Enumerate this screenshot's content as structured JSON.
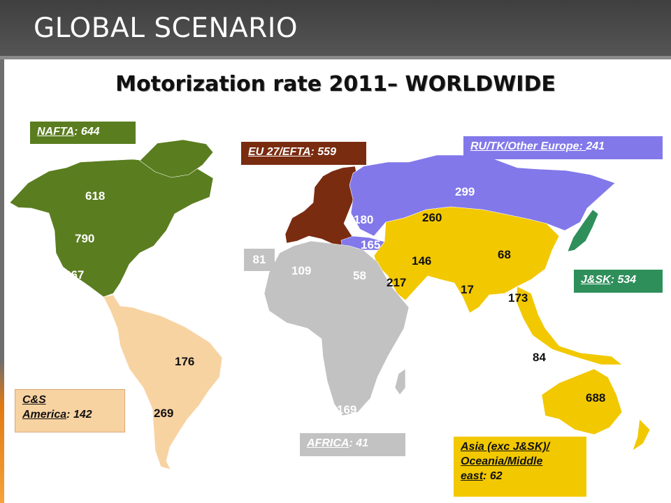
{
  "header": {
    "title": "GLOBAL SCENARIO"
  },
  "map": {
    "title": "Motorization rate 2011– WORLDWIDE",
    "colors": {
      "nafta": "#5a7d1f",
      "cs_america": "#f8d3a2",
      "eu": "#7a2c10",
      "russia": "#8278ea",
      "jsk": "#2f8f5b",
      "asia": "#f2c800",
      "africa": "#c2c2c2"
    },
    "regions": {
      "nafta": {
        "name": "NAFTA",
        "sep": ": ",
        "value": "644"
      },
      "eu": {
        "name": "EU 27/EFTA",
        "sep": ": ",
        "value": "559"
      },
      "russia": {
        "name": "RU/TK/Other Europe: ",
        "value": "241"
      },
      "jsk": {
        "name": "J&SK",
        "sep": ": ",
        "value": "534"
      },
      "cs": {
        "name_line1": "C&S",
        "name_line2": "America",
        "sep": ": ",
        "value": "142"
      },
      "africa": {
        "name": "AFRICA",
        "sep": ": ",
        "value": "41"
      },
      "asia": {
        "name_line1": "Asia (exc J&SK)/",
        "name_line2": "Oceania/Middle",
        "name_line3": "east",
        "sep": ": ",
        "value": "62"
      }
    },
    "numbers": {
      "canada": "618",
      "usa": "790",
      "mexico": "267",
      "brazil": "176",
      "argentina": "269",
      "europe_east": "180",
      "turkey": "165",
      "russia": "299",
      "central_asia": "260",
      "nw_africa": "81",
      "north_africa": "109",
      "egypt": "58",
      "south_africa": "169",
      "middle_east": "217",
      "iran": "146",
      "india": "17",
      "china": "68",
      "se_asia": "173",
      "indonesia": "84",
      "australia": "688"
    }
  }
}
